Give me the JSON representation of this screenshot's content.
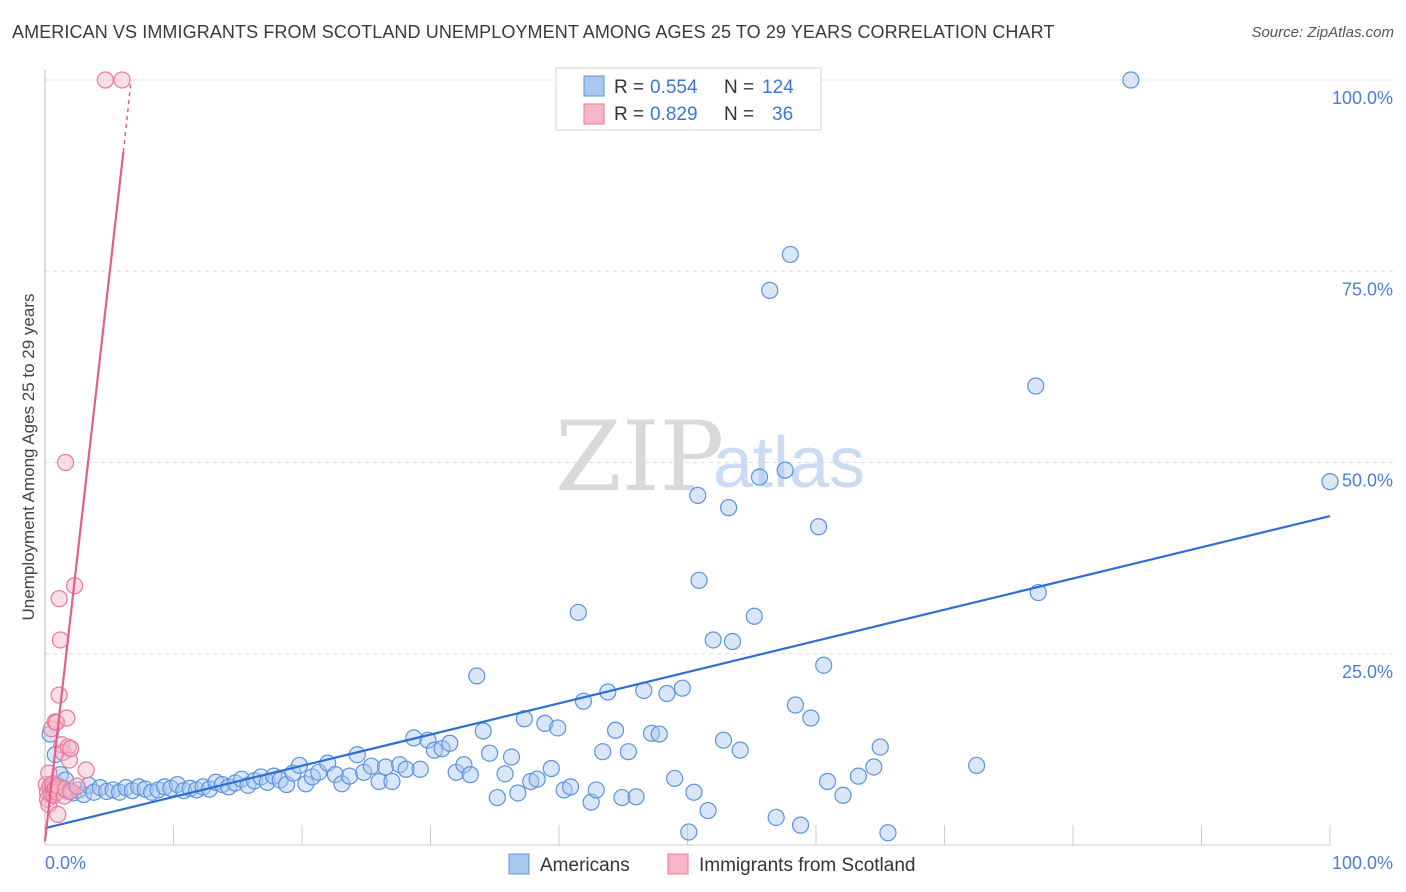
{
  "header": {
    "title": "AMERICAN VS IMMIGRANTS FROM SCOTLAND UNEMPLOYMENT AMONG AGES 25 TO 29 YEARS CORRELATION CHART",
    "source": "Source: ZipAtlas.com"
  },
  "watermark": {
    "zip": "ZIP",
    "atlas": "atlas"
  },
  "colors": {
    "americans_fill": "#a9c8f0",
    "americans_stroke": "#5b93de",
    "americans_line": "#2f6fd1",
    "scotland_fill": "#f7b6c8",
    "scotland_stroke": "#e8799a",
    "scotland_line": "#e0608b",
    "grid": "#dddddd",
    "tick_text": "#4a7fd4"
  },
  "legend": {
    "rows": [
      {
        "r_label": "R =",
        "r_value": "0.554",
        "n_label": "N =",
        "n_value": "124"
      },
      {
        "r_label": "R =",
        "r_value": "0.829",
        "n_label": "N =",
        "n_value": "36"
      }
    ]
  },
  "bottom_legend": {
    "americans": "Americans",
    "scotland": "Immigrants from Scotland"
  },
  "chart_data": {
    "type": "scatter",
    "title": "AMERICAN VS IMMIGRANTS FROM SCOTLAND UNEMPLOYMENT AMONG AGES 25 TO 29 YEARS CORRELATION CHART",
    "xlabel": "",
    "ylabel": "Unemployment Among Ages 25 to 29 years",
    "xlim": [
      0,
      100
    ],
    "ylim": [
      0,
      100
    ],
    "x_tick_labels": [
      "0.0%",
      "100.0%"
    ],
    "y_tick_labels": [
      "100.0%",
      "75.0%",
      "50.0%",
      "25.0%"
    ],
    "y_ticks": [
      100,
      75,
      50,
      25
    ],
    "series": [
      {
        "name": "Americans",
        "R": 0.554,
        "N": 124,
        "trend": {
          "x0": 0,
          "y0": 2.2,
          "x1": 100,
          "y1": 43.0
        },
        "points": [
          [
            0.4,
            14.5
          ],
          [
            0.8,
            11.8
          ],
          [
            1.2,
            9.2
          ],
          [
            1.6,
            8.5
          ],
          [
            1.3,
            7.4
          ],
          [
            1.8,
            7.0
          ],
          [
            2.2,
            6.8
          ],
          [
            2.6,
            7.2
          ],
          [
            3.0,
            6.6
          ],
          [
            3.4,
            7.8
          ],
          [
            3.8,
            6.9
          ],
          [
            4.3,
            7.5
          ],
          [
            4.8,
            7.0
          ],
          [
            5.3,
            7.2
          ],
          [
            5.8,
            6.9
          ],
          [
            6.3,
            7.5
          ],
          [
            6.8,
            7.1
          ],
          [
            7.3,
            7.6
          ],
          [
            7.8,
            7.3
          ],
          [
            8.3,
            6.9
          ],
          [
            8.8,
            7.2
          ],
          [
            9.3,
            7.6
          ],
          [
            9.8,
            7.4
          ],
          [
            10.3,
            7.9
          ],
          [
            10.8,
            7.1
          ],
          [
            11.3,
            7.4
          ],
          [
            11.8,
            7.2
          ],
          [
            12.3,
            7.6
          ],
          [
            12.8,
            7.3
          ],
          [
            13.3,
            8.2
          ],
          [
            13.8,
            7.9
          ],
          [
            14.3,
            7.6
          ],
          [
            14.8,
            8.1
          ],
          [
            15.3,
            8.6
          ],
          [
            15.8,
            7.8
          ],
          [
            16.3,
            8.4
          ],
          [
            16.8,
            8.9
          ],
          [
            17.3,
            8.2
          ],
          [
            17.8,
            9.0
          ],
          [
            18.3,
            8.5
          ],
          [
            18.8,
            7.9
          ],
          [
            19.3,
            9.4
          ],
          [
            19.8,
            10.4
          ],
          [
            20.3,
            8.0
          ],
          [
            20.8,
            8.9
          ],
          [
            21.3,
            9.5
          ],
          [
            22.0,
            10.7
          ],
          [
            22.6,
            9.2
          ],
          [
            23.1,
            8.0
          ],
          [
            23.7,
            9.0
          ],
          [
            24.3,
            11.8
          ],
          [
            24.8,
            9.5
          ],
          [
            25.4,
            10.3
          ],
          [
            26.0,
            8.3
          ],
          [
            26.5,
            10.2
          ],
          [
            27.0,
            8.3
          ],
          [
            27.6,
            10.5
          ],
          [
            28.1,
            9.9
          ],
          [
            28.7,
            14.0
          ],
          [
            29.2,
            9.9
          ],
          [
            29.8,
            13.7
          ],
          [
            30.3,
            12.4
          ],
          [
            30.9,
            12.6
          ],
          [
            31.5,
            13.3
          ],
          [
            32.0,
            9.5
          ],
          [
            32.6,
            10.5
          ],
          [
            33.1,
            9.2
          ],
          [
            33.6,
            22.1
          ],
          [
            34.1,
            14.9
          ],
          [
            34.6,
            12.0
          ],
          [
            35.2,
            6.2
          ],
          [
            35.8,
            9.3
          ],
          [
            36.3,
            11.5
          ],
          [
            36.8,
            6.8
          ],
          [
            37.3,
            16.5
          ],
          [
            37.8,
            8.3
          ],
          [
            38.3,
            8.6
          ],
          [
            38.9,
            15.9
          ],
          [
            39.4,
            10.0
          ],
          [
            39.9,
            15.3
          ],
          [
            40.4,
            7.2
          ],
          [
            40.9,
            7.6
          ],
          [
            41.5,
            30.4
          ],
          [
            41.9,
            18.8
          ],
          [
            42.5,
            5.6
          ],
          [
            42.9,
            7.2
          ],
          [
            43.4,
            12.2
          ],
          [
            43.8,
            20.0
          ],
          [
            44.4,
            15.0
          ],
          [
            44.9,
            6.2
          ],
          [
            45.4,
            12.2
          ],
          [
            46.0,
            6.3
          ],
          [
            46.6,
            20.2
          ],
          [
            47.2,
            14.6
          ],
          [
            47.8,
            14.5
          ],
          [
            48.4,
            19.8
          ],
          [
            49.0,
            8.7
          ],
          [
            49.6,
            20.5
          ],
          [
            50.1,
            1.7
          ],
          [
            50.5,
            6.9
          ],
          [
            50.8,
            45.7
          ],
          [
            50.9,
            34.6
          ],
          [
            51.6,
            4.5
          ],
          [
            52.0,
            26.8
          ],
          [
            52.8,
            13.7
          ],
          [
            53.2,
            44.1
          ],
          [
            53.5,
            26.6
          ],
          [
            54.1,
            12.4
          ],
          [
            55.2,
            29.9
          ],
          [
            55.6,
            48.1
          ],
          [
            56.4,
            72.5
          ],
          [
            56.9,
            3.6
          ],
          [
            57.6,
            49.0
          ],
          [
            58.0,
            77.2
          ],
          [
            58.4,
            18.3
          ],
          [
            58.8,
            2.6
          ],
          [
            59.6,
            16.6
          ],
          [
            60.2,
            41.6
          ],
          [
            60.6,
            23.5
          ],
          [
            60.9,
            8.3
          ],
          [
            62.1,
            6.5
          ],
          [
            63.3,
            9.0
          ],
          [
            64.5,
            10.2
          ],
          [
            65.0,
            12.8
          ],
          [
            65.6,
            1.6
          ],
          [
            72.5,
            10.4
          ],
          [
            77.1,
            60.0
          ],
          [
            77.3,
            33.0
          ],
          [
            84.5,
            100.0
          ],
          [
            100.0,
            47.5
          ]
        ]
      },
      {
        "name": "Immigrants from Scotland",
        "R": 0.829,
        "N": 36,
        "trend": {
          "x0": 0,
          "y0": 0.5,
          "x1": 6.1,
          "y1": 90.6,
          "dash_to_x": 6.7,
          "dash_to_y": 100.0
        },
        "points": [
          [
            0.1,
            7.9
          ],
          [
            0.2,
            6.9
          ],
          [
            0.2,
            6.0
          ],
          [
            0.3,
            5.3
          ],
          [
            0.3,
            9.4
          ],
          [
            0.4,
            7.7
          ],
          [
            0.5,
            6.6
          ],
          [
            0.5,
            15.2
          ],
          [
            0.6,
            7.5
          ],
          [
            0.6,
            8.0
          ],
          [
            0.7,
            7.2
          ],
          [
            0.7,
            6.5
          ],
          [
            0.8,
            16.1
          ],
          [
            0.8,
            7.4
          ],
          [
            0.9,
            16.0
          ],
          [
            0.9,
            6.9
          ],
          [
            1.0,
            4.0
          ],
          [
            1.0,
            7.7
          ],
          [
            1.1,
            19.6
          ],
          [
            1.1,
            32.2
          ],
          [
            1.2,
            26.8
          ],
          [
            1.3,
            13.1
          ],
          [
            1.4,
            12.1
          ],
          [
            1.5,
            6.4
          ],
          [
            1.6,
            7.3
          ],
          [
            1.6,
            50.0
          ],
          [
            1.7,
            16.6
          ],
          [
            1.8,
            12.8
          ],
          [
            1.9,
            11.1
          ],
          [
            2.0,
            7.0
          ],
          [
            2.0,
            12.6
          ],
          [
            2.3,
            33.9
          ],
          [
            2.5,
            7.7
          ],
          [
            3.2,
            9.8
          ],
          [
            4.7,
            100.0
          ],
          [
            6.0,
            100.0
          ]
        ]
      }
    ]
  }
}
